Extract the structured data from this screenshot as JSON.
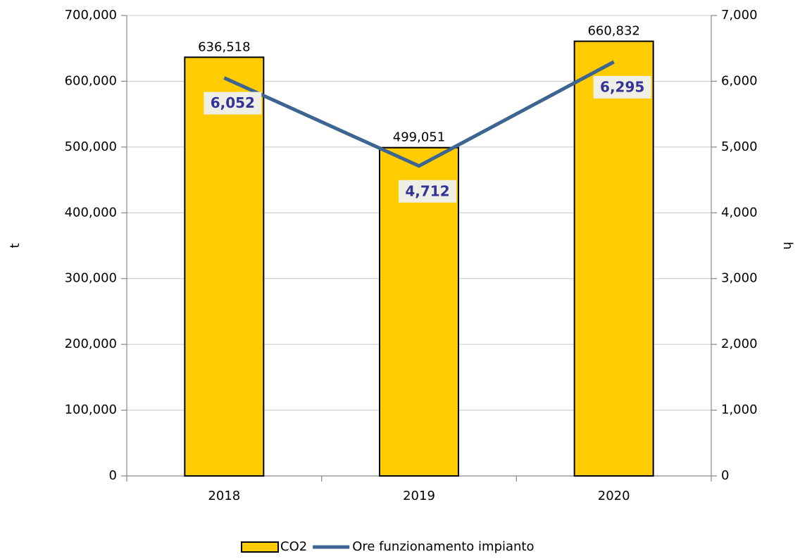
{
  "chart_data": {
    "type": "bar",
    "categories": [
      "2018",
      "2019",
      "2020"
    ],
    "series": [
      {
        "name": "CO2",
        "color": "#ffcc00",
        "values": [
          636518,
          499051,
          660832
        ],
        "value_labels": [
          "636,518",
          "499,051",
          "660,832"
        ]
      },
      {
        "name": "Ore funzionamento impianto",
        "type": "line",
        "axis": "y2",
        "color": "#3d6592",
        "values": [
          6052,
          4712,
          6295
        ],
        "value_labels": [
          "6,052",
          "4,712",
          "6,295"
        ]
      }
    ],
    "ylabel": "t",
    "y2label": "h",
    "ylim": [
      0,
      700000
    ],
    "yticks": [
      0,
      {
        "value": 100000,
        "label": "100,000"
      },
      {
        "value": 200000,
        "label": "200,000"
      },
      {
        "value": 300000,
        "label": "300,000"
      },
      {
        "value": 400000,
        "label": "400,000"
      },
      {
        "value": 500000,
        "label": "500,000"
      },
      {
        "value": 600000,
        "label": "600,000"
      },
      {
        "value": 700000,
        "label": "700,000"
      }
    ],
    "y2lim": [
      0,
      7000
    ],
    "y2ticks": [
      0,
      {
        "value": 1000,
        "label": "1,000"
      },
      {
        "value": 2000,
        "label": "2,000"
      },
      {
        "value": 3000,
        "label": "3,000"
      },
      {
        "value": 4000,
        "label": "4,000"
      },
      {
        "value": 5000,
        "label": "5,000"
      },
      {
        "value": 6000,
        "label": "6,000"
      },
      {
        "value": 7000,
        "label": "7,000"
      }
    ],
    "grid": true,
    "legend": "bottom"
  }
}
